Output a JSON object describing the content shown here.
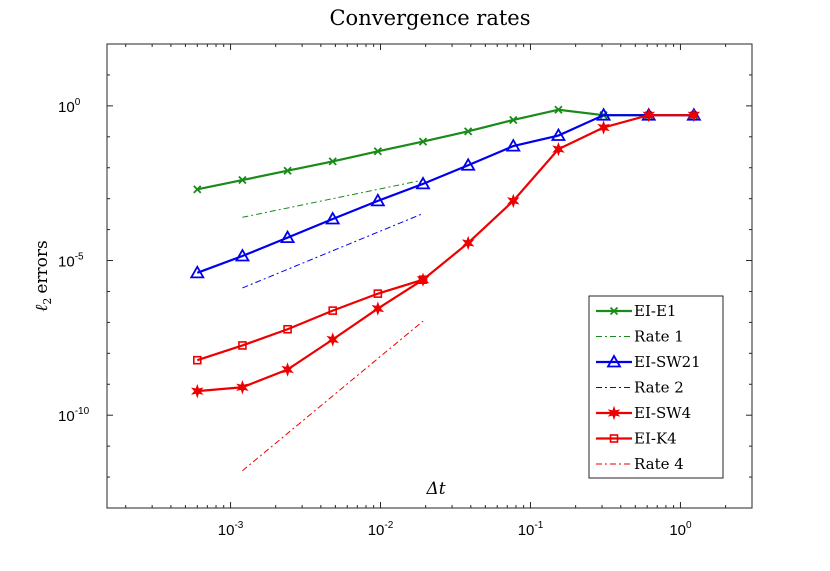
{
  "chart_data": {
    "type": "line",
    "title": "Convergence rates",
    "xlabel": "Δt",
    "ylabel": "ℓ₂ errors",
    "ylabel_parts": {
      "symbol": "ℓ",
      "subscript": "2",
      "text": "errors"
    },
    "x_scale": "log",
    "y_scale": "log",
    "xlim": [
      0.00015,
      3
    ],
    "ylim": [
      1e-13,
      100.0
    ],
    "x_ticks": [
      {
        "base": "10",
        "exp": "-3",
        "value": 0.001
      },
      {
        "base": "10",
        "exp": "-2",
        "value": 0.01
      },
      {
        "base": "10",
        "exp": "-1",
        "value": 0.1
      },
      {
        "base": "10",
        "exp": "0",
        "value": 1
      }
    ],
    "y_ticks": [
      {
        "base": "10",
        "exp": "-10",
        "value": 1e-10
      },
      {
        "base": "10",
        "exp": "-5",
        "value": 1e-05
      },
      {
        "base": "10",
        "exp": "0",
        "value": 1
      }
    ],
    "grid": false,
    "legend_position": "bottom-right",
    "series": [
      {
        "name": "EI-E1",
        "color": "#1a8a1a",
        "style": "solid",
        "marker": "x",
        "x": [
          0.0006,
          0.0012,
          0.0024,
          0.0048,
          0.0096,
          0.0192,
          0.0384,
          0.0768,
          0.1536,
          0.3072,
          0.6144,
          1.2288
        ],
        "y": [
          0.002,
          0.004,
          0.008,
          0.016,
          0.034,
          0.07,
          0.15,
          0.35,
          0.75,
          0.5,
          0.5,
          0.5
        ]
      },
      {
        "name": "Rate 1",
        "color": "#1a8a1a",
        "style": "dashdot",
        "marker": "none",
        "x": [
          0.0012,
          0.0192
        ],
        "y": [
          0.00025,
          0.004
        ]
      },
      {
        "name": "EI-SW21",
        "color": "#0000ee",
        "style": "solid",
        "marker": "triangle",
        "x": [
          0.0006,
          0.0012,
          0.0024,
          0.0048,
          0.0096,
          0.0192,
          0.0384,
          0.0768,
          0.1536,
          0.3072,
          0.6144,
          1.2288
        ],
        "y": [
          4e-06,
          1.4e-05,
          5.5e-05,
          0.00022,
          0.00085,
          0.003,
          0.012,
          0.05,
          0.11,
          0.5,
          0.5,
          0.5
        ]
      },
      {
        "name": "Rate 2",
        "color": "#0000ee",
        "style": "dashdot",
        "marker": "none",
        "x": [
          0.0012,
          0.0192
        ],
        "y": [
          1.3e-06,
          0.00033
        ]
      },
      {
        "name": "EI-SW4",
        "color": "#ee0000",
        "style": "solid",
        "marker": "star",
        "x": [
          0.0006,
          0.0012,
          0.0024,
          0.0048,
          0.0096,
          0.0192,
          0.0384,
          0.0768,
          0.1536,
          0.3072,
          0.6144,
          1.2288
        ],
        "y": [
          6e-10,
          8e-10,
          3e-09,
          2.8e-08,
          2.8e-07,
          2.4e-06,
          3.7e-05,
          0.00085,
          0.04,
          0.2,
          0.5,
          0.5
        ]
      },
      {
        "name": "EI-K4",
        "color": "#ee0000",
        "style": "solid",
        "marker": "square",
        "x": [
          0.0006,
          0.0012,
          0.0024,
          0.0048,
          0.0096,
          0.0192
        ],
        "y": [
          6e-09,
          1.8e-08,
          6e-08,
          2.4e-07,
          8.5e-07,
          2.4e-06
        ]
      },
      {
        "name": "Rate 4",
        "color": "#ee0000",
        "style": "dashdot",
        "marker": "none",
        "x": [
          0.0012,
          0.0192
        ],
        "y": [
          1.6e-12,
          1.1e-07
        ]
      }
    ]
  }
}
